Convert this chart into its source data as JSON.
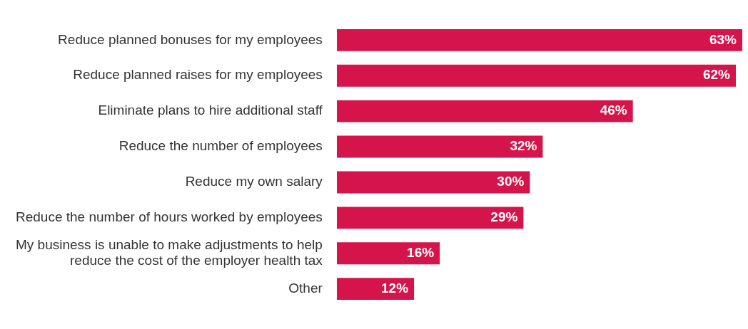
{
  "chart_data": {
    "type": "bar",
    "orientation": "horizontal",
    "categories": [
      "Reduce planned bonuses for my employees",
      "Reduce planned raises for my employees",
      "Eliminate plans to hire additional staff",
      "Reduce the number of employees",
      "Reduce my own salary",
      "Reduce the number of hours worked by employees",
      "My business is unable to make adjustments to help reduce the cost of the employer health tax",
      "Other"
    ],
    "values": [
      63,
      62,
      46,
      32,
      30,
      29,
      16,
      12
    ],
    "value_labels": [
      "63%",
      "62%",
      "46%",
      "32%",
      "30%",
      "29%",
      "16%",
      "12%"
    ],
    "color": "#d4144a"
  }
}
